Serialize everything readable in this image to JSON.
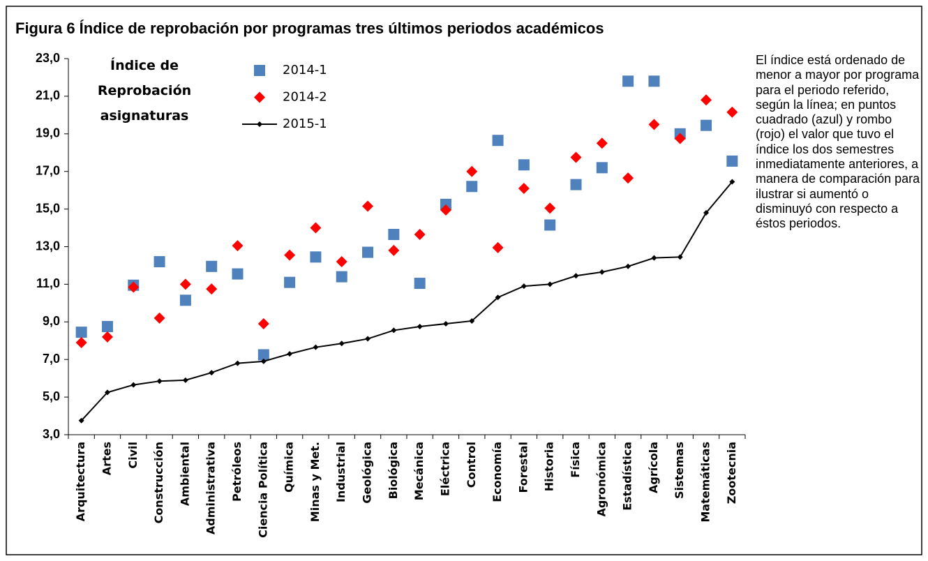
{
  "chart_data": {
    "type": "line",
    "title": "Figura 6 Índice de reprobación por programas tres últimos periodos académicos",
    "ylabel": "Índice de Reprobación asignaturas",
    "note": "El índice está ordenado de menor a mayor por programa para el periodo referido, según la línea; en puntos cuadrado (azul) y rombo (rojo) el valor que tuvo el índice los dos semestres inmediatamente anteriores, a manera de comparación para ilustrar si aumentó o disminuyó con respecto a éstos periodos.",
    "categories": [
      "Arquitectura",
      "Artes",
      "Civil",
      "Construcción",
      "Ambiental",
      "Administrativa",
      "Petróleos",
      "Ciencia Política",
      "Química",
      "Minas y Met.",
      "Industrial",
      "Geológica",
      "Biológica",
      "Mecánica",
      "Eléctrica",
      "Control",
      "Economía",
      "Forestal",
      "Historia",
      "Física",
      "Agronómica",
      "Estadística",
      "Agrícola",
      "Sistemas",
      "Matemáticas",
      "Zootecnia"
    ],
    "series": [
      {
        "name": "2014-1",
        "color": "#4f81bd",
        "marker": "square",
        "line": false,
        "values": [
          8.45,
          8.75,
          10.95,
          12.2,
          10.15,
          11.95,
          11.55,
          7.25,
          11.1,
          12.45,
          11.4,
          12.7,
          13.65,
          11.05,
          15.25,
          16.2,
          18.65,
          17.35,
          14.15,
          16.3,
          17.2,
          21.8,
          21.8,
          19.0,
          19.45,
          17.55
        ]
      },
      {
        "name": "2014-2",
        "color": "#ff0000",
        "marker": "diamond",
        "line": false,
        "values": [
          7.9,
          8.2,
          10.85,
          9.2,
          11.0,
          10.75,
          13.05,
          8.9,
          12.55,
          14.0,
          12.2,
          15.15,
          12.8,
          13.65,
          14.95,
          17.0,
          12.95,
          16.1,
          15.05,
          17.75,
          18.5,
          16.65,
          19.5,
          18.75,
          20.8,
          20.15
        ]
      },
      {
        "name": "2015-1",
        "color": "#000000",
        "marker": "small-diamond",
        "line": true,
        "values": [
          3.75,
          5.25,
          5.65,
          5.85,
          5.9,
          6.3,
          6.8,
          6.9,
          7.3,
          7.65,
          7.85,
          8.1,
          8.55,
          8.75,
          8.9,
          9.05,
          10.3,
          10.9,
          11.0,
          11.45,
          11.65,
          11.95,
          12.4,
          12.45,
          14.8,
          16.45
        ]
      }
    ],
    "ylim": [
      3,
      23
    ],
    "yticks": [
      {
        "value": 3,
        "label": "3,0"
      },
      {
        "value": 5,
        "label": "5,0"
      },
      {
        "value": 7,
        "label": "7,0"
      },
      {
        "value": 9,
        "label": "9,0"
      },
      {
        "value": 11,
        "label": "11,0"
      },
      {
        "value": 13,
        "label": "13,0"
      },
      {
        "value": 15,
        "label": "15,0"
      },
      {
        "value": 17,
        "label": "17,0"
      },
      {
        "value": 19,
        "label": "19,0"
      },
      {
        "value": 21,
        "label": "21,0"
      },
      {
        "value": 23,
        "label": "23,0"
      }
    ],
    "grid": false
  }
}
